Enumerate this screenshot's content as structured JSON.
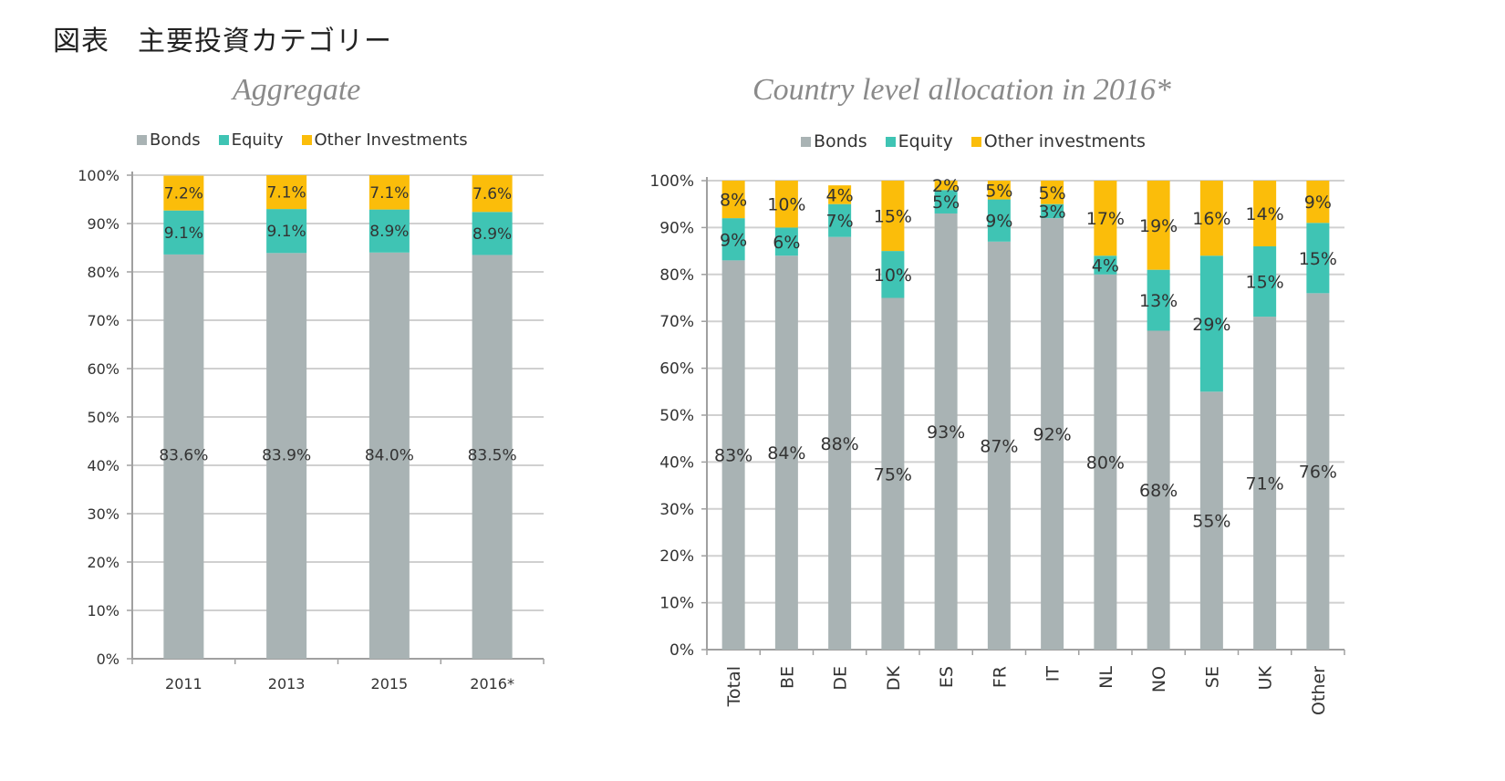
{
  "figure_title": "図表　主要投資カテゴリー",
  "colors": {
    "bonds": "#a9b3b4",
    "equity": "#3fc4b4",
    "other": "#fbbd0a",
    "grid": "#d0d0d0",
    "axis": "#a0a0a0"
  },
  "chart_data": [
    {
      "type": "bar",
      "stacked": true,
      "title": "Aggregate",
      "legend": [
        "Bonds",
        "Equity",
        "Other Investments"
      ],
      "legend_position": "top",
      "categories": [
        "2011",
        "2013",
        "2015",
        "2016*"
      ],
      "series": [
        {
          "name": "Bonds",
          "values": [
            83.6,
            83.9,
            84.0,
            83.5
          ],
          "labels": [
            "83.6%",
            "83.9%",
            "84.0%",
            "83.5%"
          ]
        },
        {
          "name": "Equity",
          "values": [
            9.1,
            9.1,
            8.9,
            8.9
          ],
          "labels": [
            "9.1%",
            "9.1%",
            "8.9%",
            "8.9%"
          ]
        },
        {
          "name": "Other Investments",
          "values": [
            7.2,
            7.1,
            7.1,
            7.6
          ],
          "labels": [
            "7.2%",
            "7.1%",
            "7.1%",
            "7.6%"
          ]
        }
      ],
      "yticks": [
        "0%",
        "10%",
        "20%",
        "30%",
        "40%",
        "50%",
        "60%",
        "70%",
        "80%",
        "90%",
        "100%"
      ],
      "ylim": [
        0,
        100
      ],
      "grid": true,
      "xlabel": "",
      "ylabel": ""
    },
    {
      "type": "bar",
      "stacked": true,
      "title": "Country level allocation in 2016*",
      "legend": [
        "Bonds",
        "Equity",
        "Other investments"
      ],
      "legend_position": "top",
      "categories": [
        "Total",
        "BE",
        "DE",
        "DK",
        "ES",
        "FR",
        "IT",
        "NL",
        "NO",
        "SE",
        "UK",
        "Other"
      ],
      "series": [
        {
          "name": "Bonds",
          "values": [
            83,
            84,
            88,
            75,
            93,
            87,
            92,
            80,
            68,
            55,
            71,
            76
          ],
          "labels": [
            "83%",
            "84%",
            "88%",
            "75%",
            "93%",
            "87%",
            "92%",
            "80%",
            "68%",
            "55%",
            "71%",
            "76%"
          ]
        },
        {
          "name": "Equity",
          "values": [
            9,
            6,
            7,
            10,
            5,
            9,
            3,
            4,
            13,
            29,
            15,
            15
          ],
          "labels": [
            "9%",
            "6%",
            "7%",
            "10%",
            "5%",
            "9%",
            "3%",
            "4%",
            "13%",
            "29%",
            "15%",
            "15%"
          ]
        },
        {
          "name": "Other investments",
          "values": [
            8,
            10,
            4,
            15,
            2,
            5,
            5,
            17,
            19,
            16,
            14,
            9
          ],
          "labels": [
            "8%",
            "10%",
            "4%",
            "15%",
            "2%",
            "5%",
            "5%",
            "17%",
            "19%",
            "16%",
            "14%",
            "9%"
          ]
        }
      ],
      "yticks": [
        "0%",
        "10%",
        "20%",
        "30%",
        "40%",
        "50%",
        "60%",
        "70%",
        "80%",
        "90%",
        "100%"
      ],
      "ylim": [
        0,
        100
      ],
      "grid": true,
      "xlabel": "",
      "ylabel": ""
    }
  ]
}
